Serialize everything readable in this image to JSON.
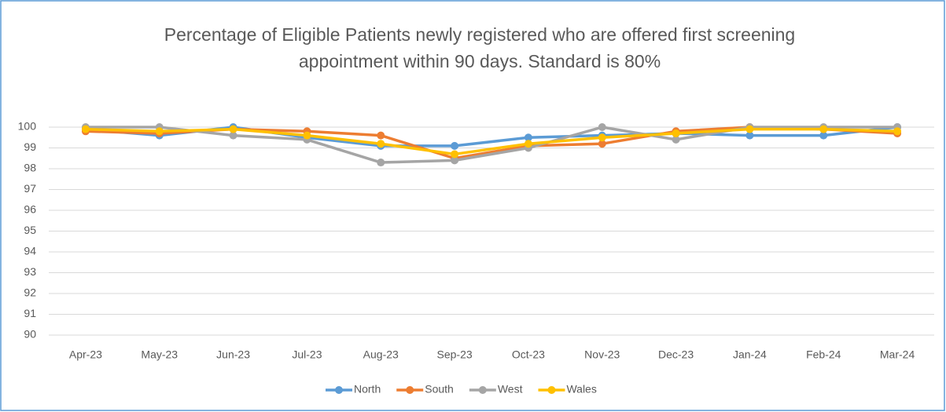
{
  "chart_data": {
    "type": "line",
    "title": [
      "Percentage of Eligible Patients newly registered who are offered first screening",
      "appointment within 90 days. Standard is 80%"
    ],
    "categories": [
      "Apr-23",
      "May-23",
      "Jun-23",
      "Jul-23",
      "Aug-23",
      "Sep-23",
      "Oct-23",
      "Nov-23",
      "Dec-23",
      "Jan-24",
      "Feb-24",
      "Mar-24"
    ],
    "series": [
      {
        "name": "North",
        "color": "#5b9bd5",
        "values": [
          99.9,
          99.6,
          100,
          99.5,
          99.1,
          99.1,
          99.5,
          99.6,
          99.7,
          99.6,
          99.6,
          100
        ]
      },
      {
        "name": "South",
        "color": "#ed7d31",
        "values": [
          99.8,
          99.7,
          99.9,
          99.8,
          99.6,
          98.5,
          99.1,
          99.2,
          99.8,
          100,
          99.9,
          99.7
        ]
      },
      {
        "name": "West",
        "color": "#a5a5a5",
        "values": [
          100,
          100,
          99.6,
          99.4,
          98.3,
          98.4,
          99.0,
          100,
          99.4,
          100,
          100,
          100
        ]
      },
      {
        "name": "Wales",
        "color": "#ffc000",
        "values": [
          99.9,
          99.8,
          99.9,
          99.6,
          99.2,
          98.7,
          99.2,
          99.5,
          99.7,
          99.9,
          99.9,
          99.8
        ]
      }
    ],
    "ylim": [
      90,
      100
    ],
    "yticks": [
      90,
      91,
      92,
      93,
      94,
      95,
      96,
      97,
      98,
      99,
      100
    ],
    "grid": true,
    "legend": "bottom"
  }
}
